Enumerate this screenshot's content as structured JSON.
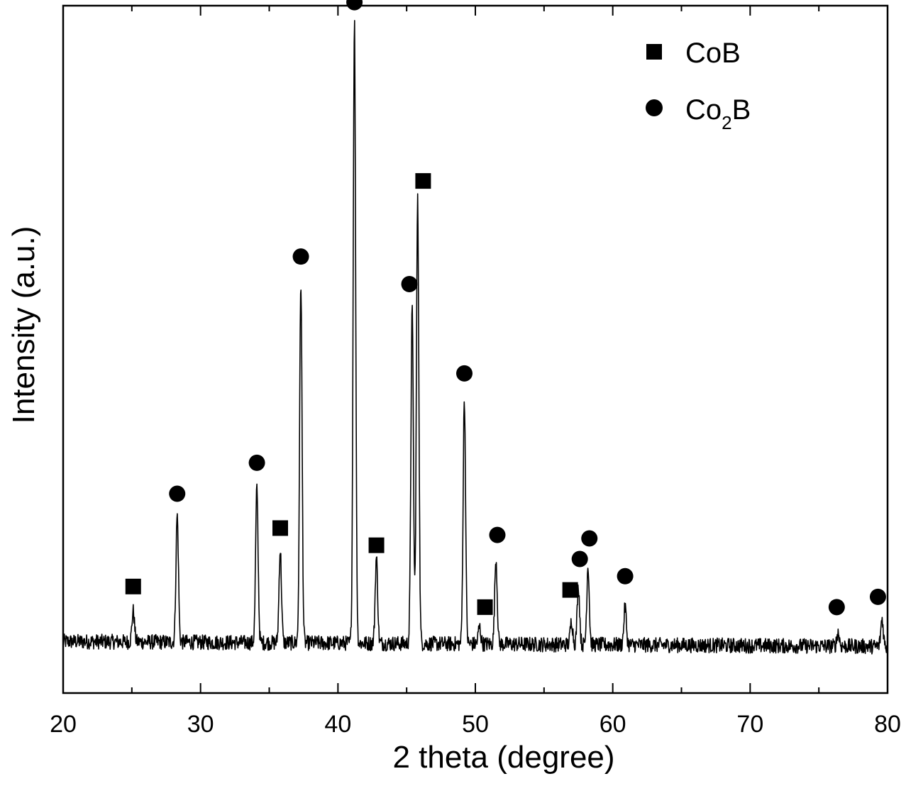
{
  "chart_data": {
    "type": "line",
    "title": "",
    "xlabel": "2 theta (degree)",
    "ylabel": "Intensity (a.u.)",
    "xlim": [
      20,
      80
    ],
    "ylim": [
      0,
      100
    ],
    "x_ticks": [
      "20",
      "30",
      "40",
      "50",
      "60",
      "70",
      "80"
    ],
    "x_tick_values": [
      20,
      30,
      40,
      50,
      60,
      70,
      80
    ],
    "y_ticks_shown": false,
    "grid": false,
    "legend_position": "top-right",
    "baseline": 7.5,
    "legend": [
      {
        "marker": "square",
        "label": "CoB",
        "label_main": "CoB",
        "label_sub": ""
      },
      {
        "marker": "circle",
        "label": "Co2B",
        "label_main": "Co",
        "label_sub": "2",
        "label_tail": "B"
      }
    ],
    "peaks": [
      {
        "x": 25.1,
        "y": 12.0,
        "phase": "CoB"
      },
      {
        "x": 28.3,
        "y": 26.0,
        "phase": "Co2B"
      },
      {
        "x": 34.1,
        "y": 30.0,
        "phase": "Co2B"
      },
      {
        "x": 35.8,
        "y": 21.0,
        "phase": "CoB"
      },
      {
        "x": 37.3,
        "y": 60.0,
        "phase": "Co2B"
      },
      {
        "x": 41.2,
        "y": 98.0,
        "phase": "Co2B"
      },
      {
        "x": 42.8,
        "y": 20.0,
        "phase": "CoB"
      },
      {
        "x": 45.4,
        "y": 56.0,
        "phase": "Co2B"
      },
      {
        "x": 45.8,
        "y": 72.0,
        "phase": "CoB"
      },
      {
        "x": 49.2,
        "y": 43.0,
        "phase": "Co2B"
      },
      {
        "x": 50.3,
        "y": 10.0,
        "phase": "CoB"
      },
      {
        "x": 51.5,
        "y": 20.0,
        "phase": "Co2B"
      },
      {
        "x": 57.0,
        "y": 11.0,
        "phase": "CoB"
      },
      {
        "x": 57.5,
        "y": 16.0,
        "phase": "Co2B"
      },
      {
        "x": 58.2,
        "y": 19.0,
        "phase": "Co2B"
      },
      {
        "x": 60.9,
        "y": 13.0,
        "phase": "Co2B"
      },
      {
        "x": 76.4,
        "y": 9.5,
        "phase": "Co2B"
      },
      {
        "x": 79.6,
        "y": 11.5,
        "phase": "Co2B"
      }
    ],
    "markers": [
      {
        "x": 25.1,
        "y": 15.5,
        "phase": "CoB"
      },
      {
        "x": 28.3,
        "y": 29.0,
        "phase": "Co2B"
      },
      {
        "x": 34.1,
        "y": 33.5,
        "phase": "Co2B"
      },
      {
        "x": 35.8,
        "y": 24.0,
        "phase": "CoB"
      },
      {
        "x": 37.3,
        "y": 63.5,
        "phase": "Co2B"
      },
      {
        "x": 41.2,
        "y": 100.5,
        "phase": "Co2B"
      },
      {
        "x": 42.8,
        "y": 21.5,
        "phase": "CoB"
      },
      {
        "x": 45.2,
        "y": 59.5,
        "phase": "Co2B"
      },
      {
        "x": 46.2,
        "y": 74.5,
        "phase": "CoB"
      },
      {
        "x": 49.2,
        "y": 46.5,
        "phase": "Co2B"
      },
      {
        "x": 50.7,
        "y": 12.5,
        "phase": "CoB"
      },
      {
        "x": 51.6,
        "y": 23.0,
        "phase": "Co2B"
      },
      {
        "x": 56.9,
        "y": 15.0,
        "phase": "CoB"
      },
      {
        "x": 57.6,
        "y": 19.5,
        "phase": "Co2B"
      },
      {
        "x": 58.3,
        "y": 22.5,
        "phase": "Co2B"
      },
      {
        "x": 60.9,
        "y": 17.0,
        "phase": "Co2B"
      },
      {
        "x": 76.3,
        "y": 12.5,
        "phase": "Co2B"
      },
      {
        "x": 79.3,
        "y": 14.0,
        "phase": "Co2B"
      }
    ]
  }
}
